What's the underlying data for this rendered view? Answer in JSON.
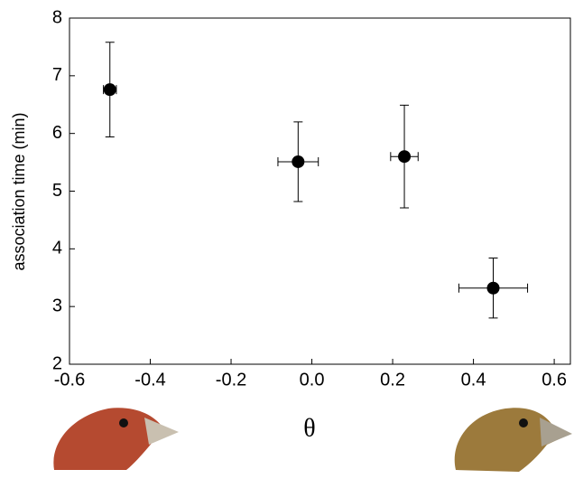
{
  "chart_data": {
    "type": "scatter",
    "x_label": "θ",
    "y_label": "association time (min)",
    "x": [
      -0.5,
      -0.034,
      0.229,
      0.449
    ],
    "xerr": [
      0.016,
      0.05,
      0.034,
      0.085
    ],
    "values": [
      6.76,
      5.51,
      5.6,
      3.32
    ],
    "yerr": [
      0.82,
      0.69,
      0.89,
      0.52
    ],
    "color": "#000000",
    "xlim": [
      -0.6,
      0.64
    ],
    "ylim": [
      2,
      8
    ],
    "xticks": [
      -0.6,
      -0.4,
      -0.2,
      {
        "value": 0,
        "label": "0.0"
      },
      0.2,
      0.4,
      0.6
    ],
    "yticks": [
      2,
      3,
      4,
      5,
      6,
      7,
      8
    ]
  }
}
